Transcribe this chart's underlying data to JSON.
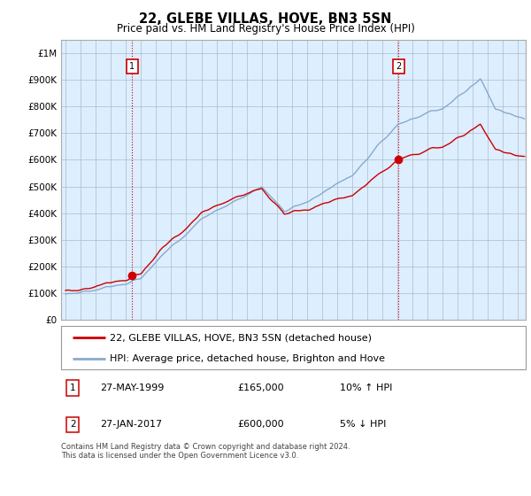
{
  "title": "22, GLEBE VILLAS, HOVE, BN3 5SN",
  "subtitle": "Price paid vs. HM Land Registry's House Price Index (HPI)",
  "ylabel_ticks": [
    "£0",
    "£100K",
    "£200K",
    "£300K",
    "£400K",
    "£500K",
    "£600K",
    "£700K",
    "£800K",
    "£900K",
    "£1M"
  ],
  "ytick_values": [
    0,
    100000,
    200000,
    300000,
    400000,
    500000,
    600000,
    700000,
    800000,
    900000,
    1000000
  ],
  "ylim": [
    0,
    1050000
  ],
  "xlim_start": 1994.7,
  "xlim_end": 2025.5,
  "transaction1_x": 1999.41,
  "transaction1_y": 165000,
  "transaction2_x": 2017.08,
  "transaction2_y": 600000,
  "vline_color": "#cc0000",
  "legend_line1": "22, GLEBE VILLAS, HOVE, BN3 5SN (detached house)",
  "legend_line2": "HPI: Average price, detached house, Brighton and Hove",
  "note1_num": "1",
  "note1_date": "27-MAY-1999",
  "note1_price": "£165,000",
  "note1_hpi": "10% ↑ HPI",
  "note2_num": "2",
  "note2_date": "27-JAN-2017",
  "note2_price": "£600,000",
  "note2_hpi": "5% ↓ HPI",
  "footer": "Contains HM Land Registry data © Crown copyright and database right 2024.\nThis data is licensed under the Open Government Licence v3.0.",
  "line_color_red": "#cc0000",
  "line_color_blue": "#88aacc",
  "dot_color_red": "#cc0000",
  "background_color": "#ffffff",
  "chart_bg_color": "#ddeeff",
  "grid_color": "#aabbcc"
}
